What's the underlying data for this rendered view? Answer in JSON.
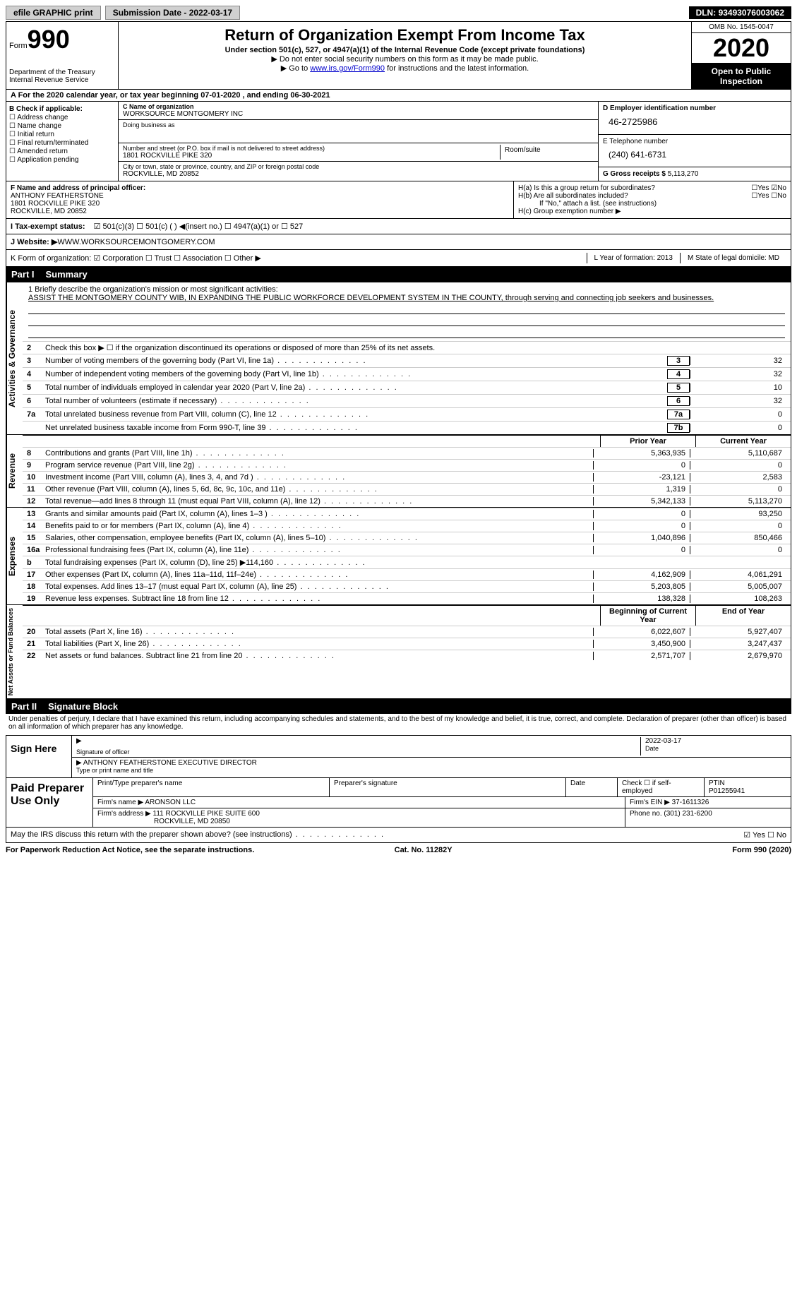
{
  "topbar": {
    "efile": "efile GRAPHIC print",
    "subdate_label": "Submission Date - ",
    "subdate": "2022-03-17",
    "dln_label": "DLN: ",
    "dln": "93493076003062"
  },
  "header": {
    "form_word": "Form",
    "form_no": "990",
    "dept": "Department of the Treasury\nInternal Revenue Service",
    "title": "Return of Organization Exempt From Income Tax",
    "sub": "Under section 501(c), 527, or 4947(a)(1) of the Internal Revenue Code (except private foundations)",
    "note1": "▶ Do not enter social security numbers on this form as it may be made public.",
    "note2_pre": "▶ Go to ",
    "note2_link": "www.irs.gov/Form990",
    "note2_post": " for instructions and the latest information.",
    "omb": "OMB No. 1545-0047",
    "year": "2020",
    "inspection": "Open to Public Inspection"
  },
  "period": {
    "text": "A For the 2020 calendar year, or tax year beginning 07-01-2020   , and ending 06-30-2021"
  },
  "colB": {
    "title": "B Check if applicable:",
    "items": [
      "☐ Address change",
      "☐ Name change",
      "☐ Initial return",
      "☐ Final return/terminated",
      "☐ Amended return",
      "☐ Application pending"
    ]
  },
  "colC": {
    "name_label": "C Name of organization",
    "name": "WORKSOURCE MONTGOMERY INC",
    "dba_label": "Doing business as",
    "dba": "",
    "street_label": "Number and street (or P.O. box if mail is not delivered to street address)",
    "street": "1801 ROCKVILLE PIKE 320",
    "room_label": "Room/suite",
    "city_label": "City or town, state or province, country, and ZIP or foreign postal code",
    "city": "ROCKVILLE, MD  20852"
  },
  "colD": {
    "ein_label": "D Employer identification number",
    "ein": "46-2725986",
    "phone_label": "E Telephone number",
    "phone": "(240) 641-6731",
    "gross_label": "G Gross receipts $ ",
    "gross": "5,113,270"
  },
  "F": {
    "label": "F  Name and address of principal officer:",
    "name": "ANTHONY FEATHERSTONE",
    "addr1": "1801 ROCKVILLE PIKE 320",
    "addr2": "ROCKVILLE, MD  20852"
  },
  "H": {
    "a": "H(a)  Is this a group return for subordinates?",
    "a_ans": "☐Yes ☑No",
    "b": "H(b)  Are all subordinates included?",
    "b_ans": "☐Yes ☐No",
    "b_note": "If \"No,\" attach a list. (see instructions)",
    "c": "H(c)  Group exemption number ▶"
  },
  "I": {
    "label": "I    Tax-exempt status:",
    "opts": "☑ 501(c)(3)    ☐ 501(c) (  ) ◀(insert no.)    ☐ 4947(a)(1) or   ☐ 527"
  },
  "J": {
    "label": "J   Website: ▶  ",
    "val": "WWW.WORKSOURCEMONTGOMERY.COM"
  },
  "K": {
    "label": "K Form of organization:  ☑ Corporation  ☐ Trust  ☐ Association  ☐ Other ▶",
    "L": "L Year of formation: 2013",
    "M": "M State of legal domicile: MD"
  },
  "part1": {
    "pn": "Part I",
    "title": "Summary"
  },
  "mission": {
    "label": "1  Briefly describe the organization's mission or most significant activities:",
    "text": "ASSIST THE MONTGOMERY COUNTY WIB, IN EXPANDING THE PUBLIC WORKFORCE DEVELOPMENT SYSTEM IN THE COUNTY, through serving and connecting job seekers and businesses."
  },
  "gov": {
    "line2": "Check this box ▶ ☐  if the organization discontinued its operations or disposed of more than 25% of its net assets.",
    "rows": [
      {
        "n": "3",
        "d": "Number of voting members of the governing body (Part VI, line 1a)",
        "box": "3",
        "v": "32"
      },
      {
        "n": "4",
        "d": "Number of independent voting members of the governing body (Part VI, line 1b)",
        "box": "4",
        "v": "32"
      },
      {
        "n": "5",
        "d": "Total number of individuals employed in calendar year 2020 (Part V, line 2a)",
        "box": "5",
        "v": "10"
      },
      {
        "n": "6",
        "d": "Total number of volunteers (estimate if necessary)",
        "box": "6",
        "v": "32"
      },
      {
        "n": "7a",
        "d": "Total unrelated business revenue from Part VIII, column (C), line 12",
        "box": "7a",
        "v": "0"
      },
      {
        "n": "",
        "d": "Net unrelated business taxable income from Form 990-T, line 39",
        "box": "7b",
        "v": "0"
      }
    ]
  },
  "colhdr": {
    "py": "Prior Year",
    "cy": "Current Year"
  },
  "revenue": {
    "label": "Revenue",
    "rows": [
      {
        "n": "8",
        "d": "Contributions and grants (Part VIII, line 1h)",
        "py": "5,363,935",
        "cy": "5,110,687"
      },
      {
        "n": "9",
        "d": "Program service revenue (Part VIII, line 2g)",
        "py": "0",
        "cy": "0"
      },
      {
        "n": "10",
        "d": "Investment income (Part VIII, column (A), lines 3, 4, and 7d )",
        "py": "-23,121",
        "cy": "2,583"
      },
      {
        "n": "11",
        "d": "Other revenue (Part VIII, column (A), lines 5, 6d, 8c, 9c, 10c, and 11e)",
        "py": "1,319",
        "cy": "0"
      },
      {
        "n": "12",
        "d": "Total revenue—add lines 8 through 11 (must equal Part VIII, column (A), line 12)",
        "py": "5,342,133",
        "cy": "5,113,270"
      }
    ]
  },
  "expenses": {
    "label": "Expenses",
    "rows": [
      {
        "n": "13",
        "d": "Grants and similar amounts paid (Part IX, column (A), lines 1–3 )",
        "py": "0",
        "cy": "93,250"
      },
      {
        "n": "14",
        "d": "Benefits paid to or for members (Part IX, column (A), line 4)",
        "py": "0",
        "cy": "0"
      },
      {
        "n": "15",
        "d": "Salaries, other compensation, employee benefits (Part IX, column (A), lines 5–10)",
        "py": "1,040,896",
        "cy": "850,466"
      },
      {
        "n": "16a",
        "d": "Professional fundraising fees (Part IX, column (A), line 11e)",
        "py": "0",
        "cy": "0"
      },
      {
        "n": "b",
        "d": "Total fundraising expenses (Part IX, column (D), line 25) ▶114,160",
        "py": "",
        "cy": "",
        "shaded": true
      },
      {
        "n": "17",
        "d": "Other expenses (Part IX, column (A), lines 11a–11d, 11f–24e)",
        "py": "4,162,909",
        "cy": "4,061,291"
      },
      {
        "n": "18",
        "d": "Total expenses. Add lines 13–17 (must equal Part IX, column (A), line 25)",
        "py": "5,203,805",
        "cy": "5,005,007"
      },
      {
        "n": "19",
        "d": "Revenue less expenses. Subtract line 18 from line 12",
        "py": "138,328",
        "cy": "108,263"
      }
    ]
  },
  "colhdr2": {
    "py": "Beginning of Current Year",
    "cy": "End of Year"
  },
  "netassets": {
    "label": "Net Assets or Fund Balances",
    "rows": [
      {
        "n": "20",
        "d": "Total assets (Part X, line 16)",
        "py": "6,022,607",
        "cy": "5,927,407"
      },
      {
        "n": "21",
        "d": "Total liabilities (Part X, line 26)",
        "py": "3,450,900",
        "cy": "3,247,437"
      },
      {
        "n": "22",
        "d": "Net assets or fund balances. Subtract line 21 from line 20",
        "py": "2,571,707",
        "cy": "2,679,970"
      }
    ]
  },
  "part2": {
    "pn": "Part II",
    "title": "Signature Block"
  },
  "jurat": "Under penalties of perjury, I declare that I have examined this return, including accompanying schedules and statements, and to the best of my knowledge and belief, it is true, correct, and complete. Declaration of preparer (other than officer) is based on all information of which preparer has any knowledge.",
  "sign": {
    "here": "Sign Here",
    "sig_label": "Signature of officer",
    "date_label": "Date",
    "date": "2022-03-17",
    "name": "ANTHONY FEATHERSTONE  EXECUTIVE DIRECTOR",
    "name_label": "Type or print name and title"
  },
  "prep": {
    "title": "Paid Preparer Use Only",
    "h1": "Print/Type preparer's name",
    "h2": "Preparer's signature",
    "h3": "Date",
    "h4": "Check ☐ if self-employed",
    "h5_label": "PTIN",
    "h5": "P01255941",
    "firm_label": "Firm's name    ▶ ",
    "firm": "ARONSON LLC",
    "ein_label": "Firm's EIN ▶ ",
    "ein": "37-1611326",
    "addr_label": "Firm's address ▶ ",
    "addr1": "111 ROCKVILLE PIKE SUITE 600",
    "addr2": "ROCKVILLE, MD  20850",
    "phone_label": "Phone no. ",
    "phone": "(301) 231-6200"
  },
  "discuss": {
    "q": "May the IRS discuss this return with the preparer shown above? (see instructions)",
    "ans": "☑ Yes  ☐ No"
  },
  "footer": {
    "left": "For Paperwork Reduction Act Notice, see the separate instructions.",
    "mid": "Cat. No. 11282Y",
    "right": "Form 990 (2020)"
  }
}
